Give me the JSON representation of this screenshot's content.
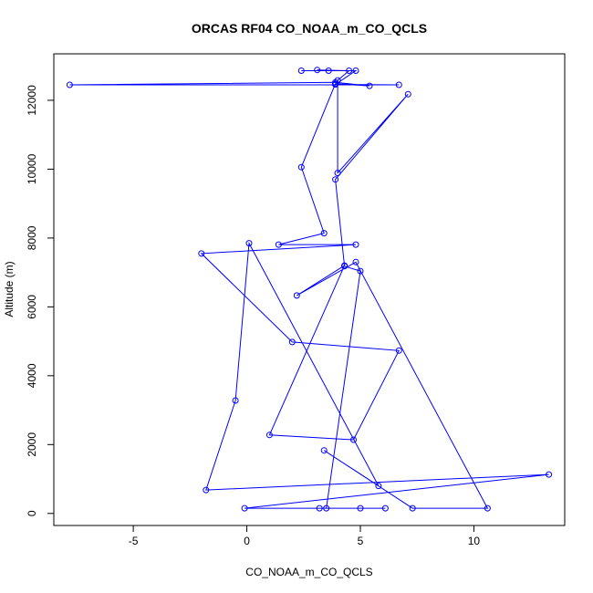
{
  "chart_data": {
    "type": "line",
    "title": "ORCAS RF04 CO_NOAA_m_CO_QCLS",
    "xlabel": "CO_NOAA_m_CO_QCLS",
    "ylabel": "Altitude (m)",
    "xlim": [
      -8.5,
      14
    ],
    "ylim": [
      -350,
      13350
    ],
    "xticks": [
      -5,
      0,
      5,
      10
    ],
    "yticks": [
      0,
      2000,
      4000,
      6000,
      8000,
      10000,
      12000
    ],
    "grid": false,
    "legend": "none",
    "marker": "open-circle",
    "series_color": "#0000ff",
    "points": [
      {
        "x": 3.2,
        "y": 150
      },
      {
        "x": 6.1,
        "y": 150
      },
      {
        "x": -0.1,
        "y": 150
      },
      {
        "x": 13.3,
        "y": 1130
      },
      {
        "x": -1.8,
        "y": 680
      },
      {
        "x": -0.5,
        "y": 3280
      },
      {
        "x": 0.1,
        "y": 7850
      },
      {
        "x": 5.8,
        "y": 800
      },
      {
        "x": 3.4,
        "y": 1830
      },
      {
        "x": 7.3,
        "y": 150
      },
      {
        "x": 10.6,
        "y": 150
      },
      {
        "x": 4.8,
        "y": 7300
      },
      {
        "x": 2.2,
        "y": 6330
      },
      {
        "x": 4.3,
        "y": 7200
      },
      {
        "x": 1.0,
        "y": 2280
      },
      {
        "x": 4.7,
        "y": 2140
      },
      {
        "x": 6.7,
        "y": 4730
      },
      {
        "x": 2.0,
        "y": 4980
      },
      {
        "x": -2.0,
        "y": 7550
      },
      {
        "x": 4.8,
        "y": 7810
      },
      {
        "x": 1.4,
        "y": 7810
      },
      {
        "x": 3.4,
        "y": 8140
      },
      {
        "x": 2.4,
        "y": 10060
      },
      {
        "x": 3.9,
        "y": 12480
      },
      {
        "x": 5.4,
        "y": 12420
      },
      {
        "x": 3.9,
        "y": 12520
      },
      {
        "x": -7.8,
        "y": 12450
      },
      {
        "x": 6.7,
        "y": 12450
      },
      {
        "x": 3.9,
        "y": 12460
      },
      {
        "x": 4.8,
        "y": 12860
      },
      {
        "x": 2.4,
        "y": 12860
      },
      {
        "x": 3.6,
        "y": 12860
      },
      {
        "x": 3.1,
        "y": 12880
      },
      {
        "x": 4.5,
        "y": 12860
      },
      {
        "x": 4.0,
        "y": 12580
      },
      {
        "x": 4.0,
        "y": 9890
      },
      {
        "x": 7.1,
        "y": 12180
      },
      {
        "x": 3.9,
        "y": 9700
      },
      {
        "x": 4.3,
        "y": 7180
      },
      {
        "x": 5.0,
        "y": 7040
      },
      {
        "x": 3.5,
        "y": 150
      },
      {
        "x": 5.0,
        "y": 150
      }
    ]
  }
}
